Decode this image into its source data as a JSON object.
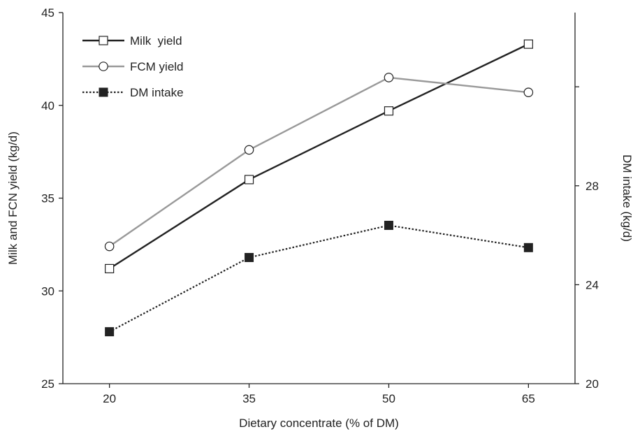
{
  "chart_data": {
    "type": "line",
    "categories": [
      "20",
      "35",
      "50",
      "65"
    ],
    "x": [
      20,
      35,
      50,
      65
    ],
    "xlabel": "Dietary concentrate (% of DM)",
    "ylabel": "Milk and FCN yield (kg/d)",
    "y2label": "DM intake (kg/d)",
    "ylim": [
      25,
      45
    ],
    "y2lim": [
      20,
      35
    ],
    "yticks": [
      "25",
      "30",
      "35",
      "40",
      "45"
    ],
    "y2ticks": [
      "20",
      "24",
      "28"
    ],
    "grid": false,
    "legend_position": "top-left",
    "series": [
      {
        "name": "Milk  yield",
        "axis": "left",
        "values": [
          31.2,
          36.0,
          39.7,
          43.3
        ],
        "color": "#222222",
        "line": "solid",
        "marker": "open-square"
      },
      {
        "name": "FCM yield",
        "axis": "left",
        "values": [
          32.4,
          37.6,
          41.5,
          40.7
        ],
        "color": "#999999",
        "line": "solid",
        "marker": "open-circle"
      },
      {
        "name": "DM intake",
        "axis": "right",
        "values": [
          22.1,
          25.1,
          26.4,
          25.5
        ],
        "color": "#222222",
        "line": "dotted",
        "marker": "filled-square"
      }
    ]
  }
}
